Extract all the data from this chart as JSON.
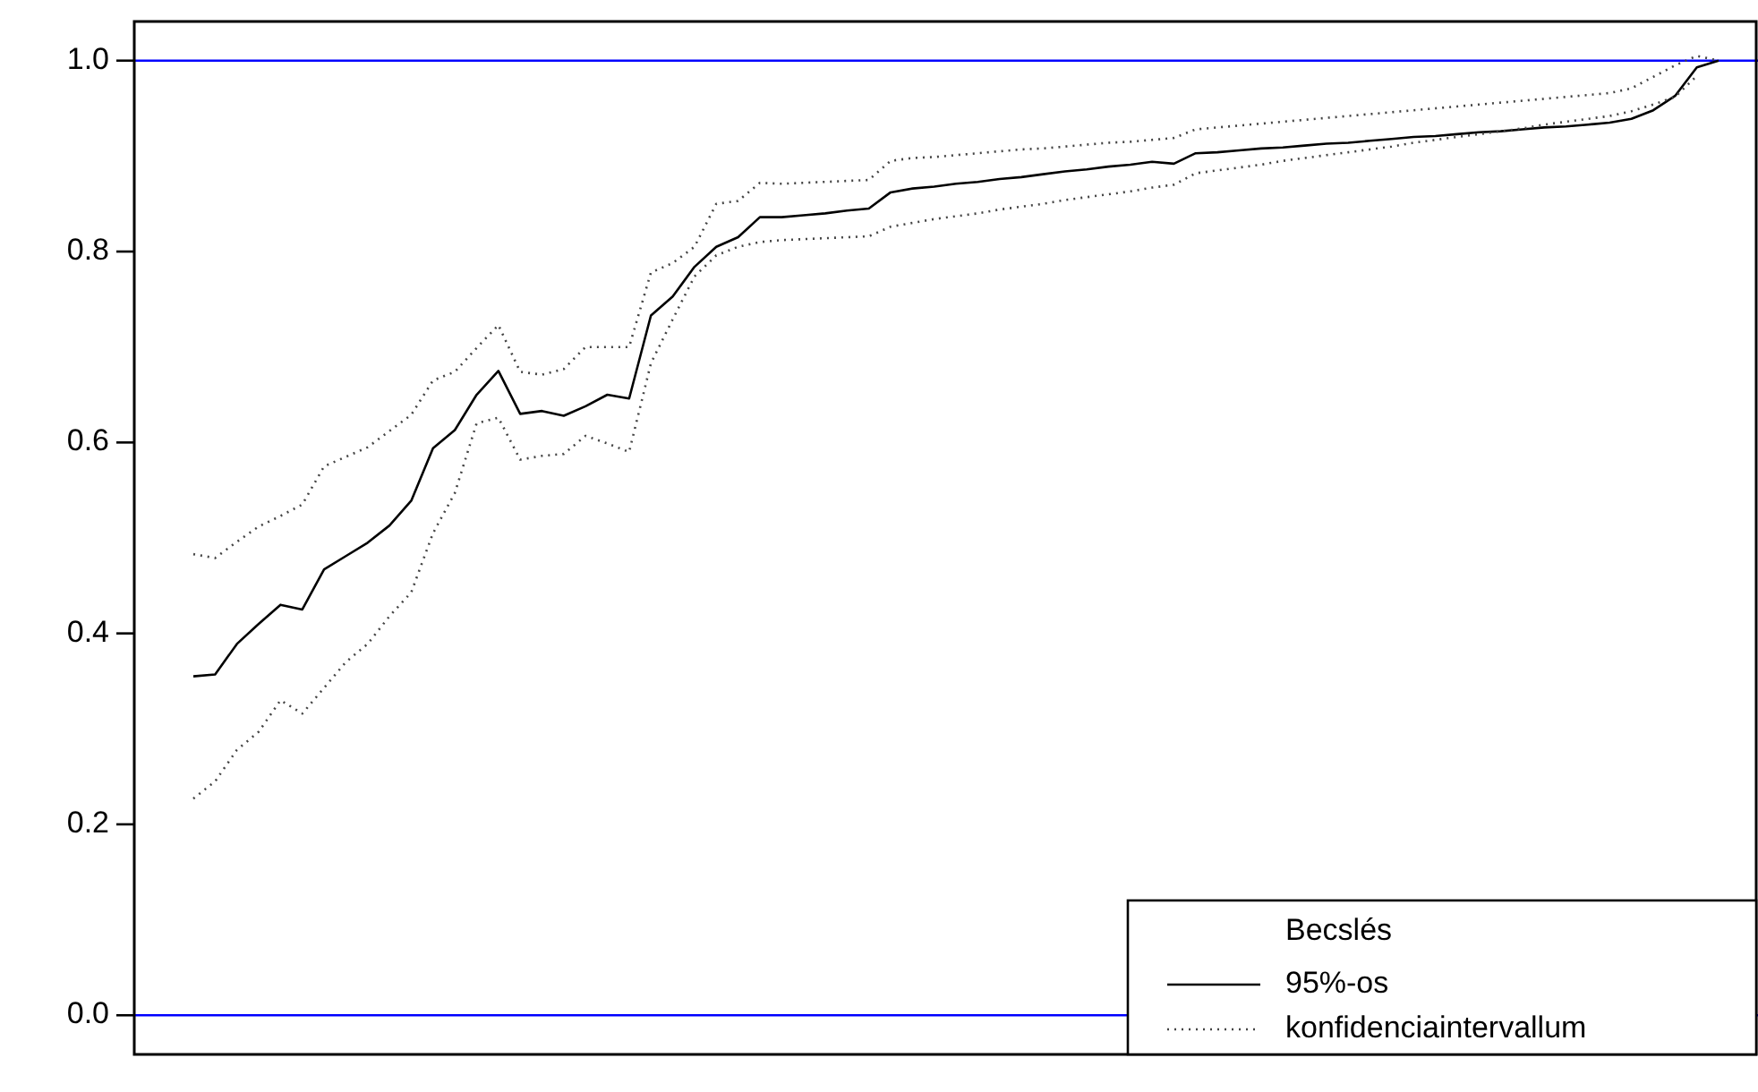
{
  "chart_data": {
    "type": "line",
    "legend_title": "Becslés",
    "legend": "bottom right",
    "tick_labels": "y",
    "ylim": [
      -0.041,
      1.041
    ],
    "categories": [
      null,
      null,
      null,
      null,
      null,
      null,
      null,
      null,
      null,
      null,
      null,
      null,
      null,
      null,
      null,
      null,
      null,
      null,
      null,
      null,
      null,
      null,
      null,
      null,
      null,
      null,
      null,
      null,
      null,
      null,
      null,
      null,
      null,
      null,
      null,
      null,
      null,
      null,
      null,
      null,
      null,
      null,
      null,
      null,
      null,
      null,
      null,
      null,
      null,
      null,
      null,
      null,
      null,
      null,
      null,
      null,
      null,
      null,
      null,
      null,
      null,
      null,
      null,
      null,
      null,
      null,
      null,
      null,
      null,
      null,
      null
    ],
    "yticks": [
      {
        "value": 0,
        "label": "0.0"
      },
      {
        "value": 0.2,
        "label": "0.2"
      },
      {
        "value": 0.4,
        "label": "0.4"
      },
      {
        "value": 0.6,
        "label": "0.6"
      },
      {
        "value": 0.8,
        "label": "0.8"
      },
      {
        "value": 1,
        "label": "1.0"
      }
    ],
    "ref_lines": [
      {
        "axis": "y",
        "value": 0,
        "color": "#0000ff"
      },
      {
        "axis": "y",
        "value": 1,
        "color": "#0000ff"
      }
    ],
    "series": [
      {
        "name": "95%-os",
        "color": "#000000",
        "line_style": "solid",
        "values": [
          0.355,
          0.357,
          0.389,
          0.41,
          0.43,
          0.425,
          0.467,
          0.481,
          0.495,
          0.513,
          0.539,
          0.594,
          0.613,
          0.65,
          0.675,
          0.63,
          0.633,
          0.628,
          0.638,
          0.65,
          0.646,
          0.733,
          0.753,
          0.784,
          0.805,
          0.815,
          0.836,
          0.836,
          0.838,
          0.84,
          0.843,
          0.845,
          0.862,
          0.866,
          0.868,
          0.871,
          0.873,
          0.876,
          0.878,
          0.881,
          0.884,
          0.886,
          0.889,
          0.891,
          0.894,
          0.892,
          0.903,
          0.904,
          0.906,
          0.908,
          0.909,
          0.911,
          0.913,
          0.914,
          0.916,
          0.918,
          0.92,
          0.921,
          0.923,
          0.925,
          0.926,
          0.928,
          0.93,
          0.931,
          0.933,
          0.935,
          0.939,
          0.948,
          0.963,
          0.993,
          1.0
        ]
      },
      {
        "name": "konfidenciaintervallum",
        "color": "#444444",
        "line_style": "dotted",
        "values": [
          0.483,
          0.479,
          0.496,
          0.512,
          0.523,
          0.535,
          0.575,
          0.585,
          0.595,
          0.612,
          0.629,
          0.665,
          0.674,
          0.699,
          0.723,
          0.674,
          0.671,
          0.677,
          0.7,
          0.7,
          0.7,
          0.778,
          0.788,
          0.805,
          0.85,
          0.853,
          0.872,
          0.871,
          0.872,
          0.873,
          0.874,
          0.875,
          0.895,
          0.898,
          0.899,
          0.901,
          0.903,
          0.905,
          0.907,
          0.908,
          0.91,
          0.912,
          0.914,
          0.915,
          0.917,
          0.919,
          0.928,
          0.93,
          0.932,
          0.934,
          0.936,
          0.938,
          0.94,
          0.942,
          0.944,
          0.946,
          0.948,
          0.95,
          0.952,
          0.954,
          0.956,
          0.958,
          0.96,
          0.962,
          0.964,
          0.966,
          0.971,
          0.983,
          0.995,
          1.005,
          1.0
        ]
      },
      {
        "color": "#444444",
        "line_style": "dotted",
        "values": [
          0.227,
          0.245,
          0.278,
          0.297,
          0.33,
          0.316,
          0.343,
          0.37,
          0.389,
          0.418,
          0.443,
          0.505,
          0.547,
          0.62,
          0.626,
          0.582,
          0.586,
          0.588,
          0.607,
          0.599,
          0.59,
          0.683,
          0.729,
          0.774,
          0.796,
          0.805,
          0.81,
          0.812,
          0.813,
          0.814,
          0.815,
          0.816,
          0.826,
          0.83,
          0.834,
          0.837,
          0.84,
          0.844,
          0.847,
          0.85,
          0.854,
          0.857,
          0.86,
          0.863,
          0.867,
          0.87,
          0.882,
          0.885,
          0.888,
          0.891,
          0.895,
          0.898,
          0.901,
          0.904,
          0.907,
          0.91,
          0.914,
          0.917,
          0.92,
          0.923,
          0.926,
          0.929,
          0.933,
          0.936,
          0.939,
          0.942,
          0.947,
          0.954,
          0.962,
          0.984,
          null
        ]
      }
    ]
  }
}
